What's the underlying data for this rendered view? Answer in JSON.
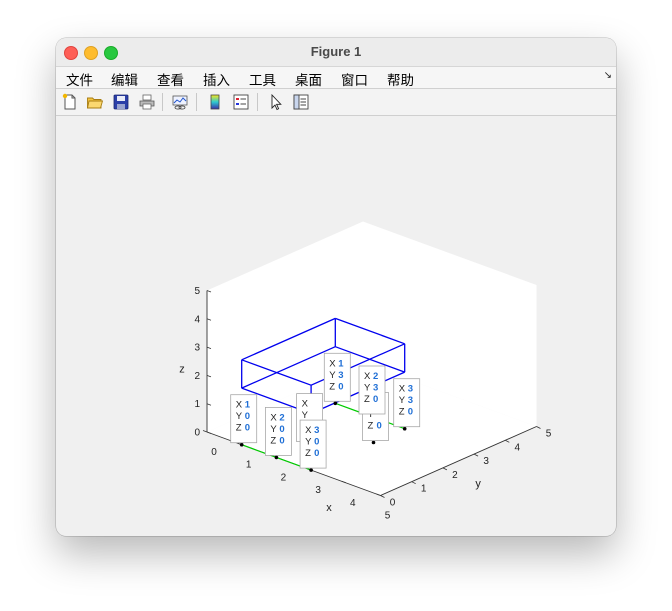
{
  "window": {
    "title": "Figure 1"
  },
  "menu": {
    "items": [
      "文件",
      "编辑",
      "查看",
      "插入",
      "工具",
      "桌面",
      "窗口",
      "帮助"
    ],
    "overflow_icon": "corner-arrow-icon"
  },
  "toolbar": {
    "buttons": [
      {
        "name": "new-figure-button",
        "icon": "new-file-icon"
      },
      {
        "name": "open-file-button",
        "icon": "folder-icon"
      },
      {
        "name": "save-button",
        "icon": "save-icon"
      },
      {
        "name": "print-button",
        "icon": "printer-icon"
      },
      {
        "name": "link-plot-button",
        "icon": "link-plot-icon"
      },
      {
        "name": "insert-colorbar-button",
        "icon": "colorbar-icon"
      },
      {
        "name": "insert-legend-button",
        "icon": "legend-icon"
      },
      {
        "name": "edit-plot-button",
        "icon": "pointer-icon"
      },
      {
        "name": "property-inspector-button",
        "icon": "property-panel-icon"
      }
    ]
  },
  "chart_data": {
    "type": "line3d",
    "title": "",
    "xlabel": "x",
    "ylabel": "y",
    "zlabel": "z",
    "xlim": [
      0,
      5
    ],
    "ylim": [
      0,
      5
    ],
    "zlim": [
      0,
      5
    ],
    "xticks": [
      "0",
      "1",
      "2",
      "3",
      "4",
      "5"
    ],
    "yticks": [
      "0",
      "1",
      "2",
      "3",
      "4",
      "5"
    ],
    "zticks": [
      "0",
      "1",
      "2",
      "3",
      "4",
      "5"
    ],
    "colors": {
      "box": "#0000ee",
      "green": "#00cc00",
      "marker": "#000000"
    },
    "box": {
      "color": "blue",
      "x": [
        1,
        3
      ],
      "y": [
        0,
        3
      ],
      "z": [
        2,
        3
      ]
    },
    "green_lines": [
      {
        "points": [
          [
            1,
            0,
            0
          ],
          [
            2,
            0,
            0
          ],
          [
            3,
            0,
            0
          ]
        ]
      },
      {
        "points": [
          [
            1,
            3,
            0
          ],
          [
            2,
            3,
            0
          ],
          [
            3,
            3,
            0
          ]
        ]
      }
    ],
    "markers": [
      [
        1,
        0,
        0
      ],
      [
        2,
        0,
        0
      ],
      [
        3,
        0,
        0
      ],
      [
        1,
        3,
        0
      ],
      [
        2,
        3,
        0
      ],
      [
        3,
        3,
        0
      ],
      [
        2,
        1,
        0
      ],
      [
        3,
        2,
        0
      ]
    ],
    "datatips": [
      {
        "X": "1",
        "Y": "3",
        "Z": "0"
      },
      {
        "X": "2",
        "Y": "3",
        "Z": "0"
      },
      {
        "X": "3",
        "Y": "3",
        "Z": "0"
      },
      {
        "X": "1",
        "Y": "0",
        "Z": "0"
      },
      {
        "X": "2",
        "Y": "0",
        "Z": "0"
      },
      {
        "X": "3",
        "Y": "0",
        "Z": "0"
      },
      {
        "X": "",
        "Y": "",
        "Z": "0"
      },
      {
        "X": "",
        "Y": "",
        "Z": "0"
      }
    ]
  }
}
